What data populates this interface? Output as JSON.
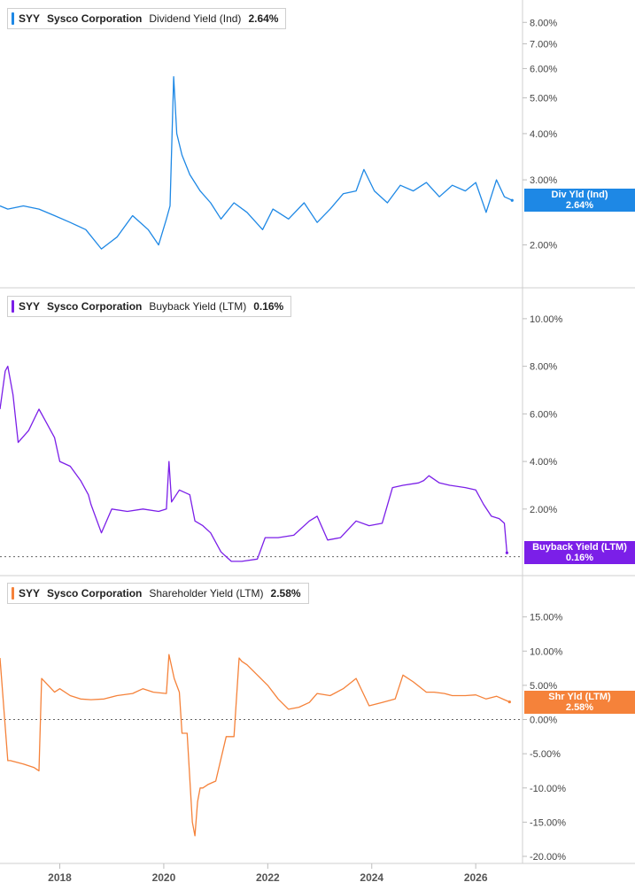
{
  "chart_data": [
    {
      "type": "line",
      "ticker": "SYY",
      "company": "Sysco Corporation",
      "metric": "Dividend Yield (Ind)",
      "current": "2.64%",
      "badge_label": "Div Yld (Ind)",
      "color": "#1e88e5",
      "scale": "log",
      "ylim": [
        1.6,
        8.8
      ],
      "y_ticks": [
        "8.00%",
        "7.00%",
        "6.00%",
        "5.00%",
        "4.00%",
        "3.00%",
        "2.00%"
      ],
      "y_tick_values": [
        8,
        7,
        6,
        5,
        4,
        3,
        2
      ],
      "reference_line": null,
      "series": [
        {
          "x": [
            2016.85,
            2017.0,
            2017.3,
            2017.6,
            2017.9,
            2018.2,
            2018.5,
            2018.8,
            2019.1,
            2019.4,
            2019.7,
            2019.9,
            2020.05,
            2020.12,
            2020.19,
            2020.25,
            2020.35,
            2020.5,
            2020.7,
            2020.9,
            2021.1,
            2021.35,
            2021.6,
            2021.9,
            2022.1,
            2022.4,
            2022.7,
            2022.95,
            2023.2,
            2023.45,
            2023.7,
            2023.85,
            2024.05,
            2024.3,
            2024.55,
            2024.8,
            2025.05,
            2025.3,
            2025.55,
            2025.8,
            2026.0,
            2026.2,
            2026.4,
            2026.55,
            2026.7
          ],
          "y": [
            2.55,
            2.5,
            2.55,
            2.5,
            2.4,
            2.3,
            2.2,
            1.95,
            2.1,
            2.4,
            2.2,
            2.0,
            2.35,
            2.55,
            5.7,
            4.0,
            3.5,
            3.1,
            2.8,
            2.6,
            2.35,
            2.6,
            2.45,
            2.2,
            2.5,
            2.35,
            2.6,
            2.3,
            2.5,
            2.75,
            2.8,
            3.2,
            2.8,
            2.6,
            2.9,
            2.8,
            2.95,
            2.7,
            2.9,
            2.8,
            2.95,
            2.45,
            3.0,
            2.7,
            2.64
          ]
        }
      ]
    },
    {
      "type": "line",
      "ticker": "SYY",
      "company": "Sysco Corporation",
      "metric": "Buyback Yield (LTM)",
      "current": "0.16%",
      "badge_label": "Buyback Yield (LTM)",
      "color": "#7b1fe8",
      "scale": "linear",
      "ylim": [
        -0.5,
        11.0
      ],
      "y_ticks": [
        "10.00%",
        "8.00%",
        "6.00%",
        "4.00%",
        "2.00%"
      ],
      "y_tick_values": [
        10,
        8,
        6,
        4,
        2
      ],
      "reference_line": 0,
      "series": [
        {
          "x": [
            2016.85,
            2016.95,
            2017.0,
            2017.1,
            2017.2,
            2017.4,
            2017.6,
            2017.7,
            2017.9,
            2018.0,
            2018.2,
            2018.4,
            2018.55,
            2018.6,
            2018.8,
            2019.0,
            2019.3,
            2019.6,
            2019.9,
            2020.05,
            2020.1,
            2020.15,
            2020.3,
            2020.5,
            2020.6,
            2020.75,
            2020.9,
            2021.1,
            2021.3,
            2021.5,
            2021.8,
            2021.95,
            2022.2,
            2022.5,
            2022.8,
            2022.95,
            2023.15,
            2023.4,
            2023.7,
            2023.95,
            2024.2,
            2024.4,
            2024.6,
            2024.9,
            2025.0,
            2025.1,
            2025.3,
            2025.5,
            2025.8,
            2026.0,
            2026.15,
            2026.3,
            2026.45,
            2026.55,
            2026.6
          ],
          "y": [
            6.2,
            7.8,
            8.0,
            6.8,
            4.8,
            5.3,
            6.2,
            5.8,
            5.0,
            4.0,
            3.8,
            3.2,
            2.6,
            2.2,
            1.0,
            2.0,
            1.9,
            2.0,
            1.9,
            2.0,
            4.0,
            2.3,
            2.8,
            2.6,
            1.5,
            1.3,
            1.0,
            0.2,
            -0.2,
            -0.2,
            -0.1,
            0.8,
            0.8,
            0.9,
            1.5,
            1.7,
            0.7,
            0.8,
            1.5,
            1.3,
            1.4,
            2.9,
            3.0,
            3.1,
            3.2,
            3.4,
            3.1,
            3.0,
            2.9,
            2.8,
            2.2,
            1.7,
            1.6,
            1.4,
            0.16
          ]
        }
      ]
    },
    {
      "type": "line",
      "ticker": "SYY",
      "company": "Sysco Corporation",
      "metric": "Shareholder Yield (LTM)",
      "current": "2.58%",
      "badge_label": "Shr Yld (LTM)",
      "color": "#f5823a",
      "scale": "linear",
      "ylim": [
        -20.0,
        20.0
      ],
      "y_ticks": [
        "15.00%",
        "10.00%",
        "5.00%",
        "0.00%",
        "-5.00%",
        "-10.00%",
        "-15.00%",
        "-20.00%"
      ],
      "y_tick_values": [
        15,
        10,
        5,
        0,
        -5,
        -10,
        -15,
        -20
      ],
      "reference_line": 0,
      "series": [
        {
          "x": [
            2016.85,
            2017.0,
            2017.05,
            2017.3,
            2017.5,
            2017.6,
            2017.65,
            2017.9,
            2018.0,
            2018.2,
            2018.4,
            2018.6,
            2018.85,
            2019.1,
            2019.4,
            2019.6,
            2019.8,
            2020.05,
            2020.1,
            2020.2,
            2020.3,
            2020.35,
            2020.45,
            2020.55,
            2020.6,
            2020.65,
            2020.7,
            2020.75,
            2020.85,
            2021.0,
            2021.2,
            2021.35,
            2021.45,
            2021.5,
            2021.6,
            2021.8,
            2022.0,
            2022.2,
            2022.4,
            2022.6,
            2022.8,
            2022.95,
            2023.2,
            2023.45,
            2023.7,
            2023.95,
            2024.2,
            2024.45,
            2024.6,
            2024.8,
            2025.05,
            2025.2,
            2025.4,
            2025.55,
            2025.8,
            2026.0,
            2026.2,
            2026.4,
            2026.55,
            2026.65
          ],
          "y": [
            9.0,
            -6.0,
            -6.0,
            -6.5,
            -7.0,
            -7.5,
            6.0,
            4.0,
            4.5,
            3.5,
            3.0,
            2.9,
            3.0,
            3.5,
            3.8,
            4.5,
            4.0,
            3.8,
            9.5,
            6.0,
            4.0,
            -2.0,
            -2.0,
            -15.0,
            -17.0,
            -12.0,
            -10.0,
            -10.0,
            -9.5,
            -9.0,
            -2.5,
            -2.5,
            9.0,
            8.5,
            8.0,
            6.5,
            5.0,
            3.0,
            1.5,
            1.8,
            2.5,
            3.8,
            3.5,
            4.5,
            6.0,
            2.0,
            2.5,
            3.0,
            6.5,
            5.5,
            4.0,
            4.0,
            3.8,
            3.5,
            3.5,
            3.6,
            3.0,
            3.4,
            2.9,
            2.58
          ]
        }
      ]
    }
  ],
  "x_axis": {
    "range": [
      2016.85,
      2026.9
    ],
    "ticks": [
      "2018",
      "2020",
      "2022",
      "2024",
      "2026"
    ],
    "tick_values": [
      2018,
      2020,
      2022,
      2024,
      2026
    ]
  }
}
